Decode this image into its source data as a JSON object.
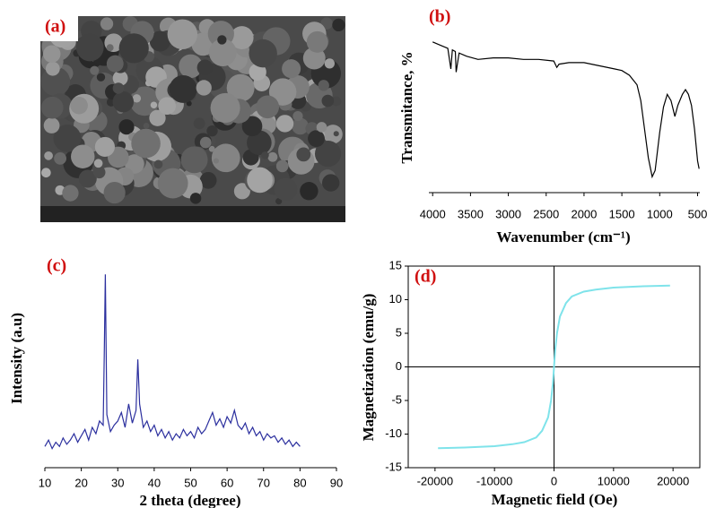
{
  "image_panel": {
    "label": "(a)"
  },
  "chart_data": [
    {
      "type": "line",
      "label": "(b)",
      "y_label": "Transmitance, %",
      "x_label": "Wavenumber (cm⁻¹)",
      "x": [
        4000,
        3900,
        3800,
        3760,
        3740,
        3700,
        3690,
        3650,
        3550,
        3400,
        3200,
        3000,
        2800,
        2600,
        2400,
        2360,
        2330,
        2200,
        2000,
        1800,
        1600,
        1500,
        1400,
        1300,
        1250,
        1200,
        1150,
        1100,
        1060,
        1000,
        950,
        900,
        850,
        800,
        760,
        700,
        660,
        620,
        580,
        540,
        500,
        480
      ],
      "series": [
        {
          "color": "#000000",
          "values": [
            95,
            93,
            91,
            78,
            90,
            89,
            76,
            88,
            86,
            84,
            85,
            85,
            84,
            84,
            83,
            79,
            81,
            82,
            82,
            80,
            78,
            77,
            74,
            68,
            58,
            40,
            22,
            10,
            14,
            38,
            54,
            62,
            58,
            48,
            55,
            62,
            65,
            62,
            55,
            40,
            20,
            15
          ]
        }
      ],
      "xlim": [
        4050,
        470
      ],
      "xticks": [
        4000,
        3500,
        3000,
        2500,
        2000,
        1500,
        1000,
        500
      ],
      "ylim": [
        0,
        100
      ],
      "frame": false,
      "zero_lines": false
    },
    {
      "type": "line",
      "label": "(c)",
      "y_label": "Intensity (a.u)",
      "x_label": "2 theta (degree)",
      "x": [
        10,
        11,
        12,
        13,
        14,
        15,
        16,
        17,
        18,
        19,
        20,
        21,
        22,
        23,
        24,
        25,
        26,
        26.3,
        26.6,
        27,
        28,
        29,
        30,
        31,
        32,
        33,
        34,
        35,
        35.5,
        36,
        37,
        38,
        39,
        40,
        41,
        42,
        43,
        44,
        45,
        46,
        47,
        48,
        49,
        50,
        51,
        52,
        53,
        54,
        55,
        56,
        57,
        58,
        59,
        60,
        61,
        62,
        63,
        64,
        65,
        66,
        67,
        68,
        69,
        70,
        71,
        72,
        73,
        74,
        75,
        76,
        77,
        78,
        79,
        80
      ],
      "series": [
        {
          "color": "#2b2f9e",
          "values": [
            10,
            13,
            9,
            12,
            10,
            14,
            11,
            13,
            16,
            12,
            15,
            18,
            13,
            19,
            16,
            22,
            20,
            53,
            91,
            25,
            17,
            20,
            22,
            26,
            19,
            30,
            21,
            27,
            51,
            30,
            19,
            22,
            17,
            20,
            15,
            18,
            14,
            17,
            13,
            16,
            14,
            18,
            15,
            17,
            14,
            19,
            16,
            18,
            22,
            26,
            20,
            23,
            19,
            24,
            21,
            27,
            20,
            18,
            21,
            16,
            19,
            15,
            17,
            13,
            16,
            14,
            15,
            12,
            14,
            11,
            13,
            10,
            12,
            10
          ]
        }
      ],
      "xlim": [
        10,
        90
      ],
      "xticks": [
        10,
        20,
        30,
        40,
        50,
        60,
        70,
        80,
        90
      ],
      "ylim": [
        0,
        100
      ],
      "frame": false,
      "zero_lines": false
    },
    {
      "type": "line",
      "label": "(d)",
      "y_label": "Magnetization (emu/g)",
      "x_label": "Magnetic field (Oe)",
      "x": [
        -19500,
        -15000,
        -10000,
        -7000,
        -5000,
        -3000,
        -2000,
        -1000,
        -500,
        -200,
        0,
        200,
        500,
        1000,
        2000,
        3000,
        5000,
        7000,
        10000,
        15000,
        19500
      ],
      "series": [
        {
          "color": "#7fe3ea",
          "values": [
            -12.1,
            -12.0,
            -11.8,
            -11.5,
            -11.2,
            -10.5,
            -9.5,
            -7.5,
            -5,
            -2.5,
            0,
            2.5,
            5,
            7.5,
            9.5,
            10.5,
            11.2,
            11.5,
            11.8,
            12.0,
            12.1
          ]
        }
      ],
      "xlim": [
        -24500,
        24500
      ],
      "xticks": [
        -20000,
        -10000,
        0,
        10000,
        20000
      ],
      "ylim": [
        -15,
        15
      ],
      "yticks": [
        -15,
        -10,
        -5,
        0,
        5,
        10,
        15
      ],
      "frame": true,
      "zero_lines": true
    }
  ]
}
